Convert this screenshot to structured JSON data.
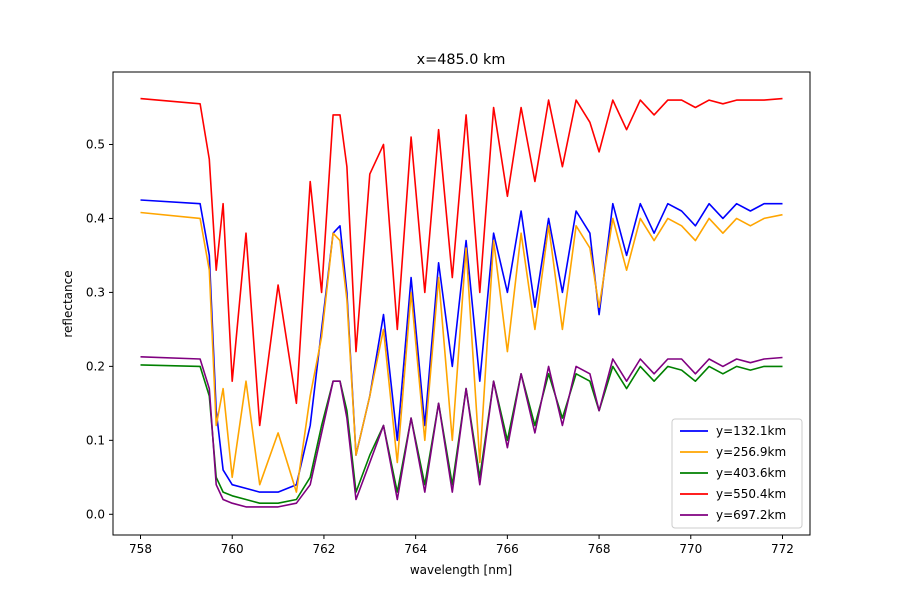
{
  "chart_data": {
    "type": "line",
    "title": "x=485.0 km",
    "xlabel": "wavelength [nm]",
    "ylabel": "reflectance",
    "xlim": [
      757.4,
      772.6
    ],
    "ylim": [
      -0.028,
      0.598
    ],
    "xticks": [
      758,
      760,
      762,
      764,
      766,
      768,
      770,
      772
    ],
    "yticks": [
      0.0,
      0.1,
      0.2,
      0.3,
      0.4,
      0.5
    ],
    "ytick_labels": [
      "0.0",
      "0.1",
      "0.2",
      "0.3",
      "0.4",
      "0.5"
    ],
    "grid": false,
    "legend_position": "lower-right",
    "series": [
      {
        "name": "y=132.1km",
        "color": "#0000ff",
        "x": [
          758.0,
          759.3,
          759.5,
          759.65,
          759.8,
          760.0,
          760.3,
          760.6,
          761.0,
          761.4,
          761.7,
          761.95,
          762.2,
          762.35,
          762.5,
          762.7,
          763.0,
          763.3,
          763.6,
          763.9,
          764.2,
          764.5,
          764.8,
          765.1,
          765.4,
          765.7,
          766.0,
          766.3,
          766.6,
          766.9,
          767.2,
          767.5,
          767.8,
          768.0,
          768.3,
          768.6,
          768.9,
          769.2,
          769.5,
          769.8,
          770.1,
          770.4,
          770.7,
          771.0,
          771.3,
          771.6,
          772.0
        ],
        "y": [
          0.425,
          0.42,
          0.35,
          0.14,
          0.06,
          0.04,
          0.035,
          0.03,
          0.03,
          0.04,
          0.12,
          0.25,
          0.38,
          0.39,
          0.3,
          0.08,
          0.16,
          0.27,
          0.1,
          0.32,
          0.12,
          0.34,
          0.2,
          0.37,
          0.18,
          0.38,
          0.3,
          0.41,
          0.28,
          0.4,
          0.3,
          0.41,
          0.38,
          0.27,
          0.42,
          0.35,
          0.42,
          0.38,
          0.42,
          0.41,
          0.39,
          0.42,
          0.4,
          0.42,
          0.41,
          0.42,
          0.42
        ]
      },
      {
        "name": "y=256.9km",
        "color": "#ffa500",
        "x": [
          758.0,
          759.3,
          759.5,
          759.65,
          759.8,
          760.0,
          760.3,
          760.6,
          761.0,
          761.4,
          761.7,
          761.95,
          762.2,
          762.35,
          762.5,
          762.7,
          763.0,
          763.3,
          763.6,
          763.9,
          764.2,
          764.5,
          764.8,
          765.1,
          765.4,
          765.7,
          766.0,
          766.3,
          766.6,
          766.9,
          767.2,
          767.5,
          767.8,
          768.0,
          768.3,
          768.6,
          768.9,
          769.2,
          769.5,
          769.8,
          770.1,
          770.4,
          770.7,
          771.0,
          771.3,
          771.6,
          772.0
        ],
        "y": [
          0.408,
          0.4,
          0.33,
          0.12,
          0.17,
          0.05,
          0.18,
          0.04,
          0.11,
          0.03,
          0.16,
          0.24,
          0.38,
          0.37,
          0.29,
          0.08,
          0.16,
          0.25,
          0.07,
          0.3,
          0.1,
          0.32,
          0.1,
          0.36,
          0.07,
          0.37,
          0.22,
          0.38,
          0.25,
          0.39,
          0.25,
          0.39,
          0.36,
          0.28,
          0.4,
          0.33,
          0.4,
          0.37,
          0.4,
          0.39,
          0.37,
          0.4,
          0.38,
          0.4,
          0.39,
          0.4,
          0.405
        ]
      },
      {
        "name": "y=403.6km",
        "color": "#008000",
        "x": [
          758.0,
          759.3,
          759.5,
          759.65,
          759.8,
          760.0,
          760.3,
          760.6,
          761.0,
          761.4,
          761.7,
          761.95,
          762.2,
          762.35,
          762.5,
          762.7,
          763.0,
          763.3,
          763.6,
          763.9,
          764.2,
          764.5,
          764.8,
          765.1,
          765.4,
          765.7,
          766.0,
          766.3,
          766.6,
          766.9,
          767.2,
          767.5,
          767.8,
          768.0,
          768.3,
          768.6,
          768.9,
          769.2,
          769.5,
          769.8,
          770.1,
          770.4,
          770.7,
          771.0,
          771.3,
          771.6,
          772.0
        ],
        "y": [
          0.202,
          0.2,
          0.16,
          0.05,
          0.03,
          0.025,
          0.02,
          0.015,
          0.015,
          0.02,
          0.05,
          0.12,
          0.18,
          0.18,
          0.14,
          0.03,
          0.08,
          0.12,
          0.03,
          0.13,
          0.04,
          0.15,
          0.04,
          0.17,
          0.05,
          0.18,
          0.1,
          0.19,
          0.12,
          0.19,
          0.13,
          0.19,
          0.18,
          0.14,
          0.2,
          0.17,
          0.2,
          0.18,
          0.2,
          0.195,
          0.18,
          0.2,
          0.19,
          0.2,
          0.195,
          0.2,
          0.2
        ]
      },
      {
        "name": "y=550.4km",
        "color": "#ff0000",
        "x": [
          758.0,
          759.3,
          759.5,
          759.65,
          759.8,
          760.0,
          760.3,
          760.6,
          761.0,
          761.4,
          761.7,
          761.95,
          762.2,
          762.35,
          762.5,
          762.7,
          763.0,
          763.3,
          763.6,
          763.9,
          764.2,
          764.5,
          764.8,
          765.1,
          765.4,
          765.7,
          766.0,
          766.3,
          766.6,
          766.9,
          767.2,
          767.5,
          767.8,
          768.0,
          768.3,
          768.6,
          768.9,
          769.2,
          769.5,
          769.8,
          770.1,
          770.4,
          770.7,
          771.0,
          771.3,
          771.6,
          772.0
        ],
        "y": [
          0.562,
          0.555,
          0.48,
          0.33,
          0.42,
          0.18,
          0.38,
          0.12,
          0.31,
          0.15,
          0.45,
          0.3,
          0.54,
          0.54,
          0.47,
          0.22,
          0.46,
          0.5,
          0.25,
          0.51,
          0.3,
          0.52,
          0.32,
          0.54,
          0.3,
          0.55,
          0.43,
          0.55,
          0.45,
          0.56,
          0.47,
          0.56,
          0.53,
          0.49,
          0.56,
          0.52,
          0.56,
          0.54,
          0.56,
          0.56,
          0.55,
          0.56,
          0.555,
          0.56,
          0.56,
          0.56,
          0.562
        ]
      },
      {
        "name": "y=697.2km",
        "color": "#800080",
        "x": [
          758.0,
          759.3,
          759.5,
          759.65,
          759.8,
          760.0,
          760.3,
          760.6,
          761.0,
          761.4,
          761.7,
          761.95,
          762.2,
          762.35,
          762.5,
          762.7,
          763.0,
          763.3,
          763.6,
          763.9,
          764.2,
          764.5,
          764.8,
          765.1,
          765.4,
          765.7,
          766.0,
          766.3,
          766.6,
          766.9,
          767.2,
          767.5,
          767.8,
          768.0,
          768.3,
          768.6,
          768.9,
          769.2,
          769.5,
          769.8,
          770.1,
          770.4,
          770.7,
          771.0,
          771.3,
          771.6,
          772.0
        ],
        "y": [
          0.213,
          0.21,
          0.17,
          0.04,
          0.02,
          0.015,
          0.01,
          0.01,
          0.01,
          0.015,
          0.04,
          0.11,
          0.18,
          0.18,
          0.13,
          0.02,
          0.07,
          0.12,
          0.02,
          0.13,
          0.03,
          0.15,
          0.03,
          0.17,
          0.04,
          0.18,
          0.09,
          0.19,
          0.11,
          0.2,
          0.12,
          0.2,
          0.19,
          0.14,
          0.21,
          0.18,
          0.21,
          0.19,
          0.21,
          0.21,
          0.19,
          0.21,
          0.2,
          0.21,
          0.205,
          0.21,
          0.212
        ]
      }
    ]
  }
}
